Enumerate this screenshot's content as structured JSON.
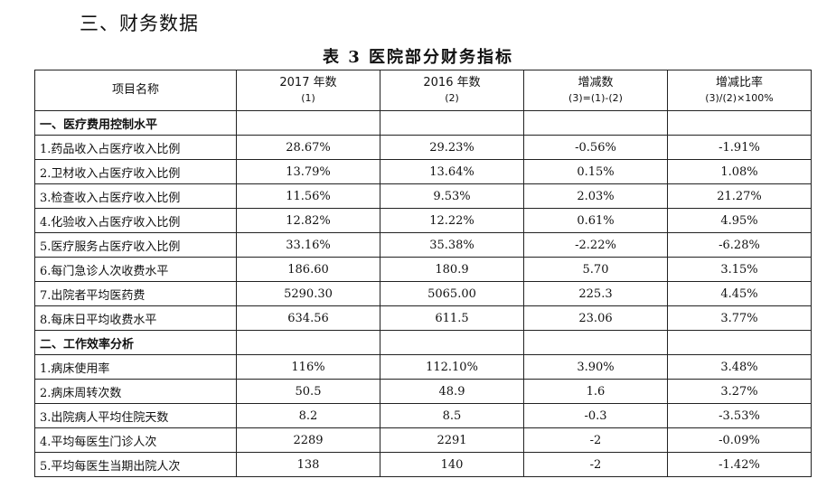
{
  "section_heading": "三、财务数据",
  "table_title": "表 3  医院部分财务指标",
  "columns": [
    {
      "label": "项目名称",
      "sub": ""
    },
    {
      "label": "2017 年数",
      "sub": "(1)"
    },
    {
      "label": "2016 年数",
      "sub": "(2)"
    },
    {
      "label": "增减数",
      "sub": "(3)=(1)-(2)"
    },
    {
      "label": "增减比率",
      "sub": "(3)/(2)×100%"
    }
  ],
  "sections": [
    {
      "title": "一、医疗费用控制水平",
      "rows": [
        {
          "name": "1.药品收入占医疗收入比例",
          "y2017": "28.67%",
          "y2016": "29.23%",
          "diff": "-0.56%",
          "rate": "-1.91%"
        },
        {
          "name": "2.卫材收入占医疗收入比例",
          "y2017": "13.79%",
          "y2016": "13.64%",
          "diff": "0.15%",
          "rate": "1.08%"
        },
        {
          "name": "3.检查收入占医疗收入比例",
          "y2017": "11.56%",
          "y2016": "9.53%",
          "diff": "2.03%",
          "rate": "21.27%"
        },
        {
          "name": "4.化验收入占医疗收入比例",
          "y2017": "12.82%",
          "y2016": "12.22%",
          "diff": "0.61%",
          "rate": "4.95%"
        },
        {
          "name": "5.医疗服务占医疗收入比例",
          "y2017": "33.16%",
          "y2016": "35.38%",
          "diff": "-2.22%",
          "rate": "-6.28%"
        },
        {
          "name": "6.每门急诊人次收费水平",
          "y2017": "186.60",
          "y2016": "180.9",
          "diff": "5.70",
          "rate": "3.15%"
        },
        {
          "name": "7.出院者平均医药费",
          "y2017": "5290.30",
          "y2016": "5065.00",
          "diff": "225.3",
          "rate": "4.45%"
        },
        {
          "name": "8.每床日平均收费水平",
          "y2017": "634.56",
          "y2016": "611.5",
          "diff": "23.06",
          "rate": "3.77%"
        }
      ]
    },
    {
      "title": "二、工作效率分析",
      "rows": [
        {
          "name": "1.病床使用率",
          "y2017": "116%",
          "y2016": "112.10%",
          "diff": "3.90%",
          "rate": "3.48%"
        },
        {
          "name": "2.病床周转次数",
          "y2017": "50.5",
          "y2016": "48.9",
          "diff": "1.6",
          "rate": "3.27%"
        },
        {
          "name": "3.出院病人平均住院天数",
          "y2017": "8.2",
          "y2016": "8.5",
          "diff": "-0.3",
          "rate": "-3.53%"
        },
        {
          "name": "4.平均每医生门诊人次",
          "y2017": "2289",
          "y2016": "2291",
          "diff": "-2",
          "rate": "-0.09%"
        },
        {
          "name": "5.平均每医生当期出院人次",
          "y2017": "138",
          "y2016": "140",
          "diff": "-2",
          "rate": "-1.42%"
        }
      ]
    }
  ]
}
